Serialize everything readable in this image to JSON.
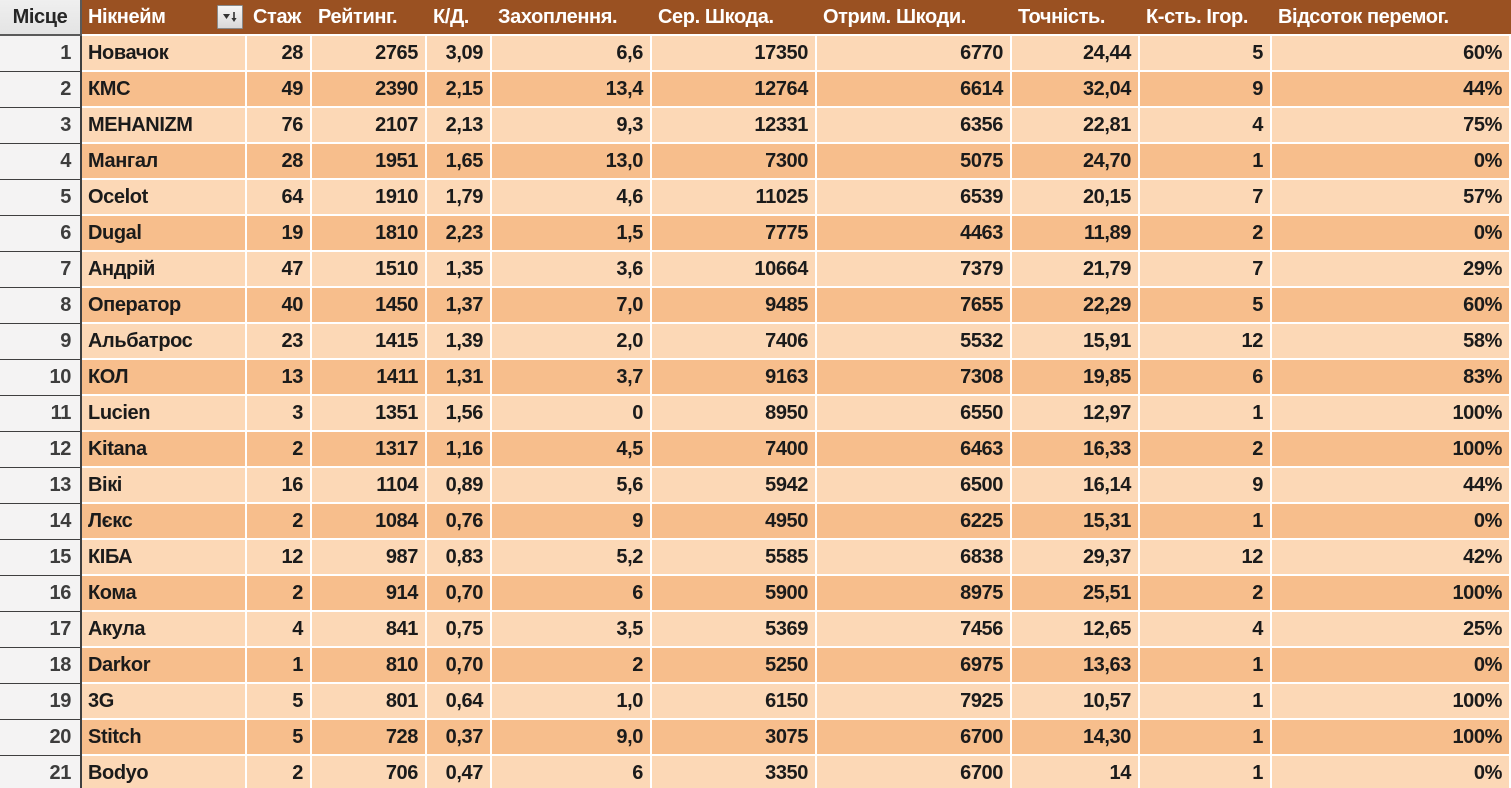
{
  "colors": {
    "header_bg": "#9A5122",
    "header_text": "#FFFFFF",
    "row_light": "#FCD8B6",
    "row_dark": "#F7BE8C",
    "cell_text": "#1B1B1B",
    "place_bg": "#F4F3F3",
    "place_header_bg": "#E4E4E4",
    "place_border": "#3F3F3F",
    "grid_line": "#FFFFFF"
  },
  "table": {
    "sort_icon": "sort-descending-icon",
    "sorted_column": "Рейтинг.",
    "columns": [
      {
        "key": "place",
        "label": "Місце"
      },
      {
        "key": "nickname",
        "label": "Нікнейм"
      },
      {
        "key": "experience",
        "label": "Стаж"
      },
      {
        "key": "rating",
        "label": "Рейтинг."
      },
      {
        "key": "kd",
        "label": "К/Д."
      },
      {
        "key": "captures",
        "label": "Захоплення."
      },
      {
        "key": "avg_damage",
        "label": "Сер. Шкода."
      },
      {
        "key": "damage_received",
        "label": "Отрим. Шкоди."
      },
      {
        "key": "accuracy",
        "label": "Точність."
      },
      {
        "key": "games",
        "label": "К-сть. Ігор."
      },
      {
        "key": "win_percent",
        "label": "Відсоток перемог."
      }
    ],
    "rows": [
      {
        "place": "1",
        "nickname": "Новачок",
        "experience": "28",
        "rating": "2765",
        "kd": "3,09",
        "captures": "6,6",
        "avg_damage": "17350",
        "damage_received": "6770",
        "accuracy": "24,44",
        "games": "5",
        "win_percent": "60%"
      },
      {
        "place": "2",
        "nickname": "КМС",
        "experience": "49",
        "rating": "2390",
        "kd": "2,15",
        "captures": "13,4",
        "avg_damage": "12764",
        "damage_received": "6614",
        "accuracy": "32,04",
        "games": "9",
        "win_percent": "44%"
      },
      {
        "place": "3",
        "nickname": "MEHANIZM",
        "experience": "76",
        "rating": "2107",
        "kd": "2,13",
        "captures": "9,3",
        "avg_damage": "12331",
        "damage_received": "6356",
        "accuracy": "22,81",
        "games": "4",
        "win_percent": "75%"
      },
      {
        "place": "4",
        "nickname": "Мангал",
        "experience": "28",
        "rating": "1951",
        "kd": "1,65",
        "captures": "13,0",
        "avg_damage": "7300",
        "damage_received": "5075",
        "accuracy": "24,70",
        "games": "1",
        "win_percent": "0%"
      },
      {
        "place": "5",
        "nickname": "Ocelot",
        "experience": "64",
        "rating": "1910",
        "kd": "1,79",
        "captures": "4,6",
        "avg_damage": "11025",
        "damage_received": "6539",
        "accuracy": "20,15",
        "games": "7",
        "win_percent": "57%"
      },
      {
        "place": "6",
        "nickname": "Dugal",
        "experience": "19",
        "rating": "1810",
        "kd": "2,23",
        "captures": "1,5",
        "avg_damage": "7775",
        "damage_received": "4463",
        "accuracy": "11,89",
        "games": "2",
        "win_percent": "0%"
      },
      {
        "place": "7",
        "nickname": "Андрій",
        "experience": "47",
        "rating": "1510",
        "kd": "1,35",
        "captures": "3,6",
        "avg_damage": "10664",
        "damage_received": "7379",
        "accuracy": "21,79",
        "games": "7",
        "win_percent": "29%"
      },
      {
        "place": "8",
        "nickname": "Оператор",
        "experience": "40",
        "rating": "1450",
        "kd": "1,37",
        "captures": "7,0",
        "avg_damage": "9485",
        "damage_received": "7655",
        "accuracy": "22,29",
        "games": "5",
        "win_percent": "60%"
      },
      {
        "place": "9",
        "nickname": "Альбатрос",
        "experience": "23",
        "rating": "1415",
        "kd": "1,39",
        "captures": "2,0",
        "avg_damage": "7406",
        "damage_received": "5532",
        "accuracy": "15,91",
        "games": "12",
        "win_percent": "58%"
      },
      {
        "place": "10",
        "nickname": "КОЛ",
        "experience": "13",
        "rating": "1411",
        "kd": "1,31",
        "captures": "3,7",
        "avg_damage": "9163",
        "damage_received": "7308",
        "accuracy": "19,85",
        "games": "6",
        "win_percent": "83%"
      },
      {
        "place": "11",
        "nickname": "Lucien",
        "experience": "3",
        "rating": "1351",
        "kd": "1,56",
        "captures": "0",
        "avg_damage": "8950",
        "damage_received": "6550",
        "accuracy": "12,97",
        "games": "1",
        "win_percent": "100%"
      },
      {
        "place": "12",
        "nickname": "Kitana",
        "experience": "2",
        "rating": "1317",
        "kd": "1,16",
        "captures": "4,5",
        "avg_damage": "7400",
        "damage_received": "6463",
        "accuracy": "16,33",
        "games": "2",
        "win_percent": "100%"
      },
      {
        "place": "13",
        "nickname": "Вікі",
        "experience": "16",
        "rating": "1104",
        "kd": "0,89",
        "captures": "5,6",
        "avg_damage": "5942",
        "damage_received": "6500",
        "accuracy": "16,14",
        "games": "9",
        "win_percent": "44%"
      },
      {
        "place": "14",
        "nickname": "Лєкс",
        "experience": "2",
        "rating": "1084",
        "kd": "0,76",
        "captures": "9",
        "avg_damage": "4950",
        "damage_received": "6225",
        "accuracy": "15,31",
        "games": "1",
        "win_percent": "0%"
      },
      {
        "place": "15",
        "nickname": "КІБА",
        "experience": "12",
        "rating": "987",
        "kd": "0,83",
        "captures": "5,2",
        "avg_damage": "5585",
        "damage_received": "6838",
        "accuracy": "29,37",
        "games": "12",
        "win_percent": "42%"
      },
      {
        "place": "16",
        "nickname": "Кома",
        "experience": "2",
        "rating": "914",
        "kd": "0,70",
        "captures": "6",
        "avg_damage": "5900",
        "damage_received": "8975",
        "accuracy": "25,51",
        "games": "2",
        "win_percent": "100%"
      },
      {
        "place": "17",
        "nickname": "Акула",
        "experience": "4",
        "rating": "841",
        "kd": "0,75",
        "captures": "3,5",
        "avg_damage": "5369",
        "damage_received": "7456",
        "accuracy": "12,65",
        "games": "4",
        "win_percent": "25%"
      },
      {
        "place": "18",
        "nickname": "Darkor",
        "experience": "1",
        "rating": "810",
        "kd": "0,70",
        "captures": "2",
        "avg_damage": "5250",
        "damage_received": "6975",
        "accuracy": "13,63",
        "games": "1",
        "win_percent": "0%"
      },
      {
        "place": "19",
        "nickname": "3G",
        "experience": "5",
        "rating": "801",
        "kd": "0,64",
        "captures": "1,0",
        "avg_damage": "6150",
        "damage_received": "7925",
        "accuracy": "10,57",
        "games": "1",
        "win_percent": "100%"
      },
      {
        "place": "20",
        "nickname": "Stitch",
        "experience": "5",
        "rating": "728",
        "kd": "0,37",
        "captures": "9,0",
        "avg_damage": "3075",
        "damage_received": "6700",
        "accuracy": "14,30",
        "games": "1",
        "win_percent": "100%"
      },
      {
        "place": "21",
        "nickname": "Bodyo",
        "experience": "2",
        "rating": "706",
        "kd": "0,47",
        "captures": "6",
        "avg_damage": "3350",
        "damage_received": "6700",
        "accuracy": "14",
        "games": "1",
        "win_percent": "0%"
      }
    ]
  }
}
